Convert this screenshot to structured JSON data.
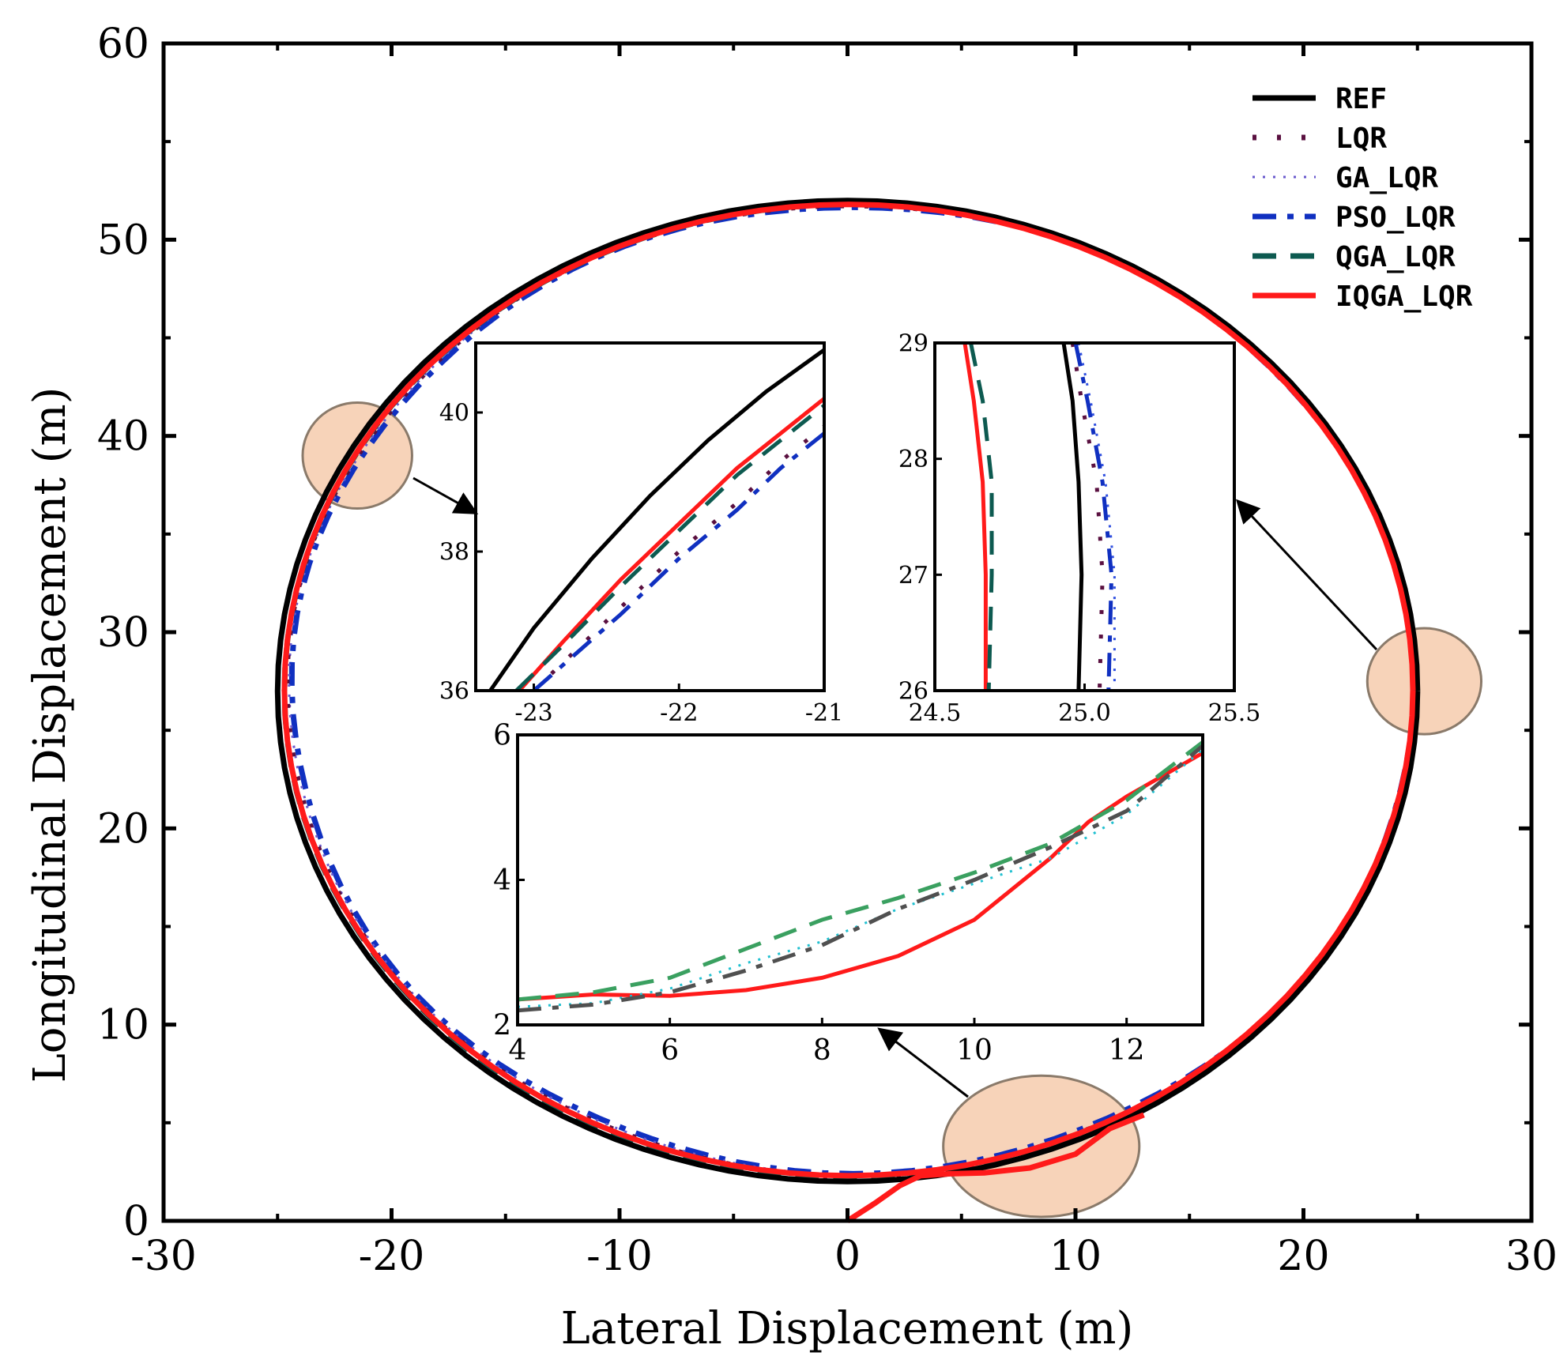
{
  "chart_data": {
    "type": "line",
    "title": "",
    "xlabel": "Lateral Displacement (m)",
    "ylabel": "Longitudinal Displacement (m)",
    "xlim": [
      -30,
      30
    ],
    "ylim": [
      0,
      60
    ],
    "xticks": [
      -30,
      -20,
      -10,
      0,
      10,
      20,
      30
    ],
    "yticks": [
      0,
      10,
      20,
      30,
      40,
      50,
      60
    ],
    "xtick_labels": [
      "-30",
      "-20",
      "-10",
      "0",
      "10",
      "20",
      "30"
    ],
    "ytick_labels": [
      "0",
      "10",
      "20",
      "30",
      "40",
      "50",
      "60"
    ],
    "legend_position": "top-right",
    "reference_path": {
      "center": [
        0,
        27
      ],
      "radius_x": 25,
      "radius_y": 25
    },
    "series": [
      {
        "name": "REF",
        "color": "#000000",
        "style": "solid"
      },
      {
        "name": "LQR",
        "color": "#5a1040",
        "style": "dotted"
      },
      {
        "name": "GA_LQR",
        "color": "#6a5acd",
        "style": "fine-dotted"
      },
      {
        "name": "PSO_LQR",
        "color": "#1030c0",
        "style": "dash-dot"
      },
      {
        "name": "QGA_LQR",
        "color": "#0d5a50",
        "style": "dashed"
      },
      {
        "name": "IQGA_LQR",
        "color": "#ff1a1a",
        "style": "solid"
      }
    ],
    "highlight_regions": [
      {
        "label": "region-left",
        "center": [
          -21.5,
          39
        ],
        "radius_x": 2.4,
        "radius_y": 2.7
      },
      {
        "label": "region-right",
        "center": [
          25.3,
          27.5
        ],
        "radius_x": 2.5,
        "radius_y": 2.7
      },
      {
        "label": "region-bottom",
        "center": [
          8.5,
          3.8
        ],
        "radius_x": 4.3,
        "radius_y": 3.6
      }
    ],
    "insets": [
      {
        "name": "inset-left",
        "xlim": [
          -23.4,
          -21
        ],
        "ylim": [
          36,
          41
        ],
        "xticks": [
          -23,
          -22,
          -21
        ],
        "yticks": [
          36,
          38,
          40
        ],
        "xtick_labels": [
          "-23",
          "-22",
          "-21"
        ],
        "ytick_labels": [
          "36",
          "38",
          "40"
        ],
        "series": [
          {
            "name": "REF",
            "x": [
              -23.3,
              -23.0,
              -22.6,
              -22.2,
              -21.8,
              -21.4,
              -21.0
            ],
            "y": [
              36.0,
              36.9,
              37.9,
              38.8,
              39.6,
              40.3,
              40.9
            ]
          },
          {
            "name": "IQGA_LQR",
            "x": [
              -23.1,
              -22.8,
              -22.4,
              -22.0,
              -21.6,
              -21.3,
              -21.0
            ],
            "y": [
              36.0,
              36.7,
              37.6,
              38.4,
              39.2,
              39.7,
              40.2
            ]
          },
          {
            "name": "QGA_LQR",
            "x": [
              -23.12,
              -22.8,
              -22.4,
              -22.0,
              -21.6,
              -21.3,
              -21.0
            ],
            "y": [
              36.0,
              36.65,
              37.5,
              38.3,
              39.1,
              39.6,
              40.1
            ]
          },
          {
            "name": "LQR",
            "x": [
              -23.0,
              -22.7,
              -22.4,
              -22.0,
              -21.6,
              -21.3,
              -21.0
            ],
            "y": [
              36.0,
              36.6,
              37.2,
              38.0,
              38.7,
              39.3,
              39.8
            ]
          },
          {
            "name": "PSO_LQR",
            "x": [
              -23.0,
              -22.7,
              -22.4,
              -22.0,
              -21.6,
              -21.3,
              -21.0
            ],
            "y": [
              36.0,
              36.55,
              37.1,
              37.9,
              38.6,
              39.2,
              39.7
            ]
          }
        ]
      },
      {
        "name": "inset-right",
        "xlim": [
          24.5,
          25.5
        ],
        "ylim": [
          26,
          29
        ],
        "xticks": [
          24.5,
          25.0,
          25.5
        ],
        "yticks": [
          26,
          27,
          28,
          29
        ],
        "xtick_labels": [
          "24.5",
          "25.0",
          "25.5"
        ],
        "ytick_labels": [
          "26",
          "27",
          "28",
          "29"
        ],
        "series": [
          {
            "name": "REF",
            "x": [
              24.93,
              24.96,
              24.98,
              24.99,
              24.98
            ],
            "y": [
              29.0,
              28.5,
              27.8,
              27.0,
              26.0
            ]
          },
          {
            "name": "IQGA_LQR",
            "x": [
              24.6,
              24.63,
              24.66,
              24.67,
              24.67
            ],
            "y": [
              29.0,
              28.5,
              27.8,
              27.0,
              26.0
            ]
          },
          {
            "name": "QGA_LQR",
            "x": [
              24.62,
              24.66,
              24.69,
              24.69,
              24.68
            ],
            "y": [
              29.0,
              28.5,
              27.8,
              27.0,
              26.0
            ]
          },
          {
            "name": "LQR",
            "x": [
              24.96,
              24.99,
              25.04,
              25.06,
              25.05
            ],
            "y": [
              29.0,
              28.5,
              27.8,
              27.0,
              26.0
            ]
          },
          {
            "name": "GA_LQR",
            "x": [
              24.98,
              25.02,
              25.07,
              25.1,
              25.1
            ],
            "y": [
              29.0,
              28.5,
              27.8,
              27.0,
              26.0
            ]
          },
          {
            "name": "PSO_LQR",
            "x": [
              24.97,
              25.01,
              25.06,
              25.09,
              25.08
            ],
            "y": [
              29.0,
              28.5,
              27.8,
              27.0,
              26.0
            ]
          }
        ]
      },
      {
        "name": "inset-bottom",
        "xlim": [
          4,
          13
        ],
        "ylim": [
          2,
          6
        ],
        "xticks": [
          4,
          6,
          8,
          10,
          12
        ],
        "yticks": [
          2,
          4,
          6
        ],
        "xtick_labels": [
          "4",
          "6",
          "8",
          "10",
          "12"
        ],
        "ytick_labels": [
          "2",
          "4",
          "6"
        ],
        "series": [
          {
            "name": "IQGA_LQR",
            "x": [
              4,
              5,
              6,
              7,
              8,
              9,
              10,
              11,
              11.5,
              12,
              13
            ],
            "y": [
              2.35,
              2.42,
              2.4,
              2.48,
              2.65,
              2.95,
              3.45,
              4.3,
              4.8,
              5.15,
              5.75
            ]
          },
          {
            "name": "QGA_LQR",
            "x": [
              4,
              5,
              6,
              7,
              8,
              9,
              10,
              11,
              12,
              13
            ],
            "y": [
              2.35,
              2.45,
              2.65,
              3.05,
              3.45,
              3.75,
              4.1,
              4.5,
              5.1,
              5.9
            ]
          },
          {
            "name": "GA_LQR",
            "x": [
              4,
              5,
              6,
              7,
              8,
              9,
              10,
              11,
              12,
              13
            ],
            "y": [
              2.25,
              2.3,
              2.5,
              2.85,
              3.15,
              3.6,
              3.95,
              4.3,
              4.9,
              5.8
            ]
          },
          {
            "name": "PSO_LQR",
            "x": [
              4,
              5,
              6,
              7,
              8,
              9,
              10,
              11,
              12,
              13
            ],
            "y": [
              2.2,
              2.28,
              2.45,
              2.75,
              3.1,
              3.6,
              4.0,
              4.45,
              4.95,
              5.85
            ]
          }
        ]
      }
    ]
  }
}
